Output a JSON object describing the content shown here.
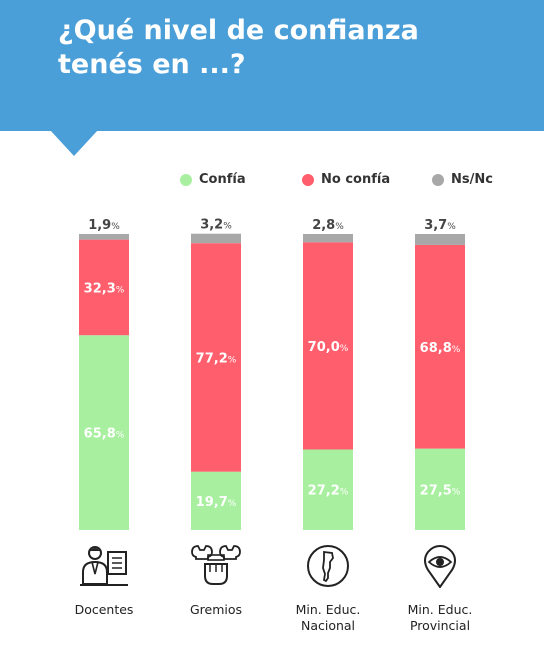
{
  "header": {
    "title": "¿Qué nivel de confianza tenés en ...?"
  },
  "colors": {
    "header_bg": "#4a9fd9",
    "confia": "#a8f0a0",
    "no_confia": "#ff5e6c",
    "ns_nc": "#a8a8a8"
  },
  "legend": [
    {
      "label": "Confía",
      "color": "#a8f0a0"
    },
    {
      "label": "No confía",
      "color": "#ff5e6c"
    },
    {
      "label": "Ns/Nc",
      "color": "#a8a8a8"
    }
  ],
  "icons": [
    "teacher-icon",
    "wrench-fist-icon",
    "argentina-map-icon",
    "map-pin-eye-icon"
  ],
  "chart_data": {
    "type": "bar",
    "stacked": true,
    "orientation": "vertical",
    "unit": "%",
    "categories": [
      "Docentes",
      "Gremios",
      "Min. Educ. Nacional",
      "Min. Educ. Provincial"
    ],
    "category_lines": [
      [
        "Docentes"
      ],
      [
        "Gremios"
      ],
      [
        "Min. Educ.",
        "Nacional"
      ],
      [
        "Min. Educ.",
        "Provincial"
      ]
    ],
    "series": [
      {
        "name": "Confía",
        "values": [
          65.8,
          19.7,
          27.2,
          27.5
        ],
        "labels": [
          "65,8",
          "19,7",
          "27,2",
          "27,5"
        ]
      },
      {
        "name": "No confía",
        "values": [
          32.3,
          77.2,
          70.0,
          68.8
        ],
        "labels": [
          "32,3",
          "77,2",
          "70,0",
          "68,8"
        ]
      },
      {
        "name": "Ns/Nc",
        "values": [
          1.9,
          3.2,
          2.8,
          3.7
        ],
        "labels": [
          "1,9",
          "3,2",
          "2,8",
          "3,7"
        ]
      }
    ],
    "percent_sign": "%",
    "ylim": [
      0,
      100
    ],
    "grid": false,
    "legend_position": "top"
  }
}
